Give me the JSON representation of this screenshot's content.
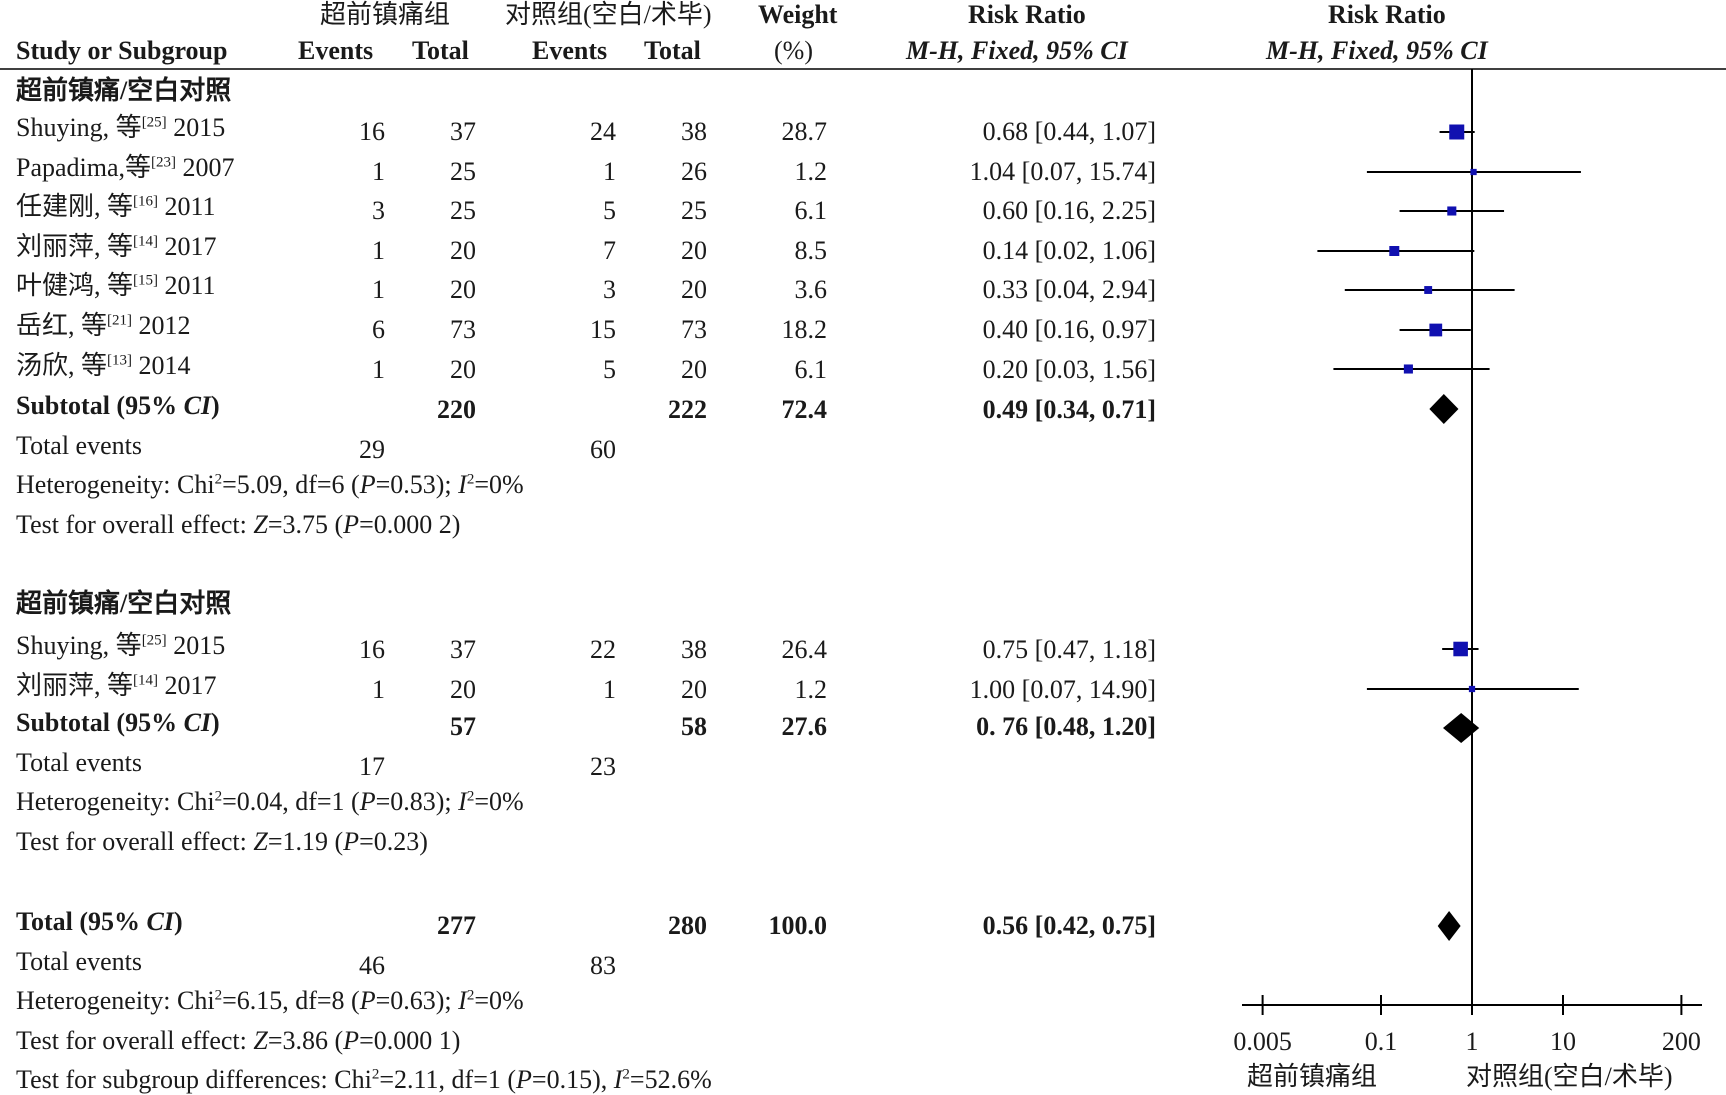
{
  "header": {
    "group1": "超前镇痛组",
    "group2": "对照组(空白/术毕)",
    "study_col": "Study or Subgroup",
    "events": "Events",
    "total": "Total",
    "weight_top": "Weight",
    "weight_unit": "(%)",
    "rr_title": "Risk Ratio",
    "rr_method_a": "M-H, Fixed, 95% CI",
    "plot_title": "Risk Ratio",
    "plot_method": "M-H, Fixed, 95% CI"
  },
  "subgroups": [
    {
      "title": "超前镇痛/空白对照",
      "studies": [
        {
          "name": "Shuying, 等",
          "ref": "[25]",
          "year": "2015",
          "e1": "16",
          "t1": "37",
          "e2": "24",
          "t2": "38",
          "w": "28.7",
          "ci": "0.68 [0.44, 1.07]"
        },
        {
          "name": "Papadima,等",
          "ref": "[23]",
          "year": "2007",
          "e1": "1",
          "t1": "25",
          "e2": "1",
          "t2": "26",
          "w": "1.2",
          "ci": "1.04 [0.07, 15.74]"
        },
        {
          "name": "任建刚, 等",
          "ref": "[16]",
          "year": "2011",
          "e1": "3",
          "t1": "25",
          "e2": "5",
          "t2": "25",
          "w": "6.1",
          "ci": "0.60 [0.16, 2.25]"
        },
        {
          "name": "刘丽萍, 等",
          "ref": "[14]",
          "year": "2017",
          "e1": "1",
          "t1": "20",
          "e2": "7",
          "t2": "20",
          "w": "8.5",
          "ci": "0.14 [0.02, 1.06]"
        },
        {
          "name": "叶健鸿, 等",
          "ref": "[15]",
          "year": "2011",
          "e1": "1",
          "t1": "20",
          "e2": "3",
          "t2": "20",
          "w": "3.6",
          "ci": "0.33 [0.04, 2.94]"
        },
        {
          "name": "岳红, 等",
          "ref": "[21]",
          "year": "2012",
          "e1": "6",
          "t1": "73",
          "e2": "15",
          "t2": "73",
          "w": "18.2",
          "ci": "0.40 [0.16, 0.97]"
        },
        {
          "name": "汤欣, 等",
          "ref": "[13]",
          "year": "2014",
          "e1": "1",
          "t1": "20",
          "e2": "5",
          "t2": "20",
          "w": "6.1",
          "ci": "0.20 [0.03, 1.56]"
        }
      ],
      "subtotal": {
        "label": "Subtotal (95% ",
        "label_ci": "CI",
        "label_end": ")",
        "t1": "220",
        "t2": "222",
        "w": "72.4",
        "ci": "0.49 [0.34, 0.71]"
      },
      "events_label": "Total events",
      "events1": "29",
      "events2": "60",
      "hetero": "Heterogeneity: Chi²=5.09, df=6 (P=0.53); I²=0%",
      "overall": "Test for overall effect: Z=3.75 (P=0.000 2)"
    },
    {
      "title": "超前镇痛/空白对照",
      "studies": [
        {
          "name": "Shuying, 等",
          "ref": "[25]",
          "year": "2015",
          "e1": "16",
          "t1": "37",
          "e2": "22",
          "t2": "38",
          "w": "26.4",
          "ci": "0.75 [0.47, 1.18]"
        },
        {
          "name": "刘丽萍, 等",
          "ref": "[14]",
          "year": "2017",
          "e1": "1",
          "t1": "20",
          "e2": "1",
          "t2": "20",
          "w": "1.2",
          "ci": "1.00 [0.07, 14.90]"
        }
      ],
      "subtotal": {
        "label": "Subtotal (95% ",
        "label_ci": "CI",
        "label_end": ")",
        "t1": "57",
        "t2": "58",
        "w": "27.6",
        "ci": "0. 76 [0.48, 1.20]"
      },
      "events_label": "Total events",
      "events1": "17",
      "events2": "23",
      "hetero": "Heterogeneity: Chi²=0.04, df=1 (P=0.83); I²=0%",
      "overall": "Test for overall effect: Z=1.19 (P=0.23)"
    }
  ],
  "total": {
    "label": "Total (95% ",
    "label_ci": "CI",
    "label_end": ")",
    "t1": "277",
    "t2": "280",
    "w": "100.0",
    "ci": "0.56 [0.42, 0.75]",
    "events_label": "Total events",
    "events1": "46",
    "events2": "83",
    "hetero": "Heterogeneity: Chi²=6.15, df=8 (P=0.63); I²=0%",
    "overall": "Test for overall effect: Z=3.86 (P=0.000 1)",
    "subgroup_diff": "Test for subgroup differences: Chi²=2.11, df=1 (P=0.15), I²=52.6%"
  },
  "axis": {
    "favours_left": "超前镇痛组",
    "favours_right": "对照组(空白/术毕)"
  },
  "chart_data": {
    "type": "forest",
    "scale": "log",
    "xlim": [
      0.005,
      200
    ],
    "ticks": [
      0.005,
      0.1,
      1,
      10,
      200
    ],
    "tick_labels": [
      "0.005",
      "0.1",
      "1",
      "10",
      "200"
    ],
    "reference_line": 1,
    "marker_color": "#1010b0",
    "summary_color": "#000000",
    "studies": [
      {
        "rr": 0.68,
        "lo": 0.44,
        "hi": 1.07,
        "w": 28.7
      },
      {
        "rr": 1.04,
        "lo": 0.07,
        "hi": 15.74,
        "w": 1.2
      },
      {
        "rr": 0.6,
        "lo": 0.16,
        "hi": 2.25,
        "w": 6.1
      },
      {
        "rr": 0.14,
        "lo": 0.02,
        "hi": 1.06,
        "w": 8.5
      },
      {
        "rr": 0.33,
        "lo": 0.04,
        "hi": 2.94,
        "w": 3.6
      },
      {
        "rr": 0.4,
        "lo": 0.16,
        "hi": 0.97,
        "w": 18.2
      },
      {
        "rr": 0.2,
        "lo": 0.03,
        "hi": 1.56,
        "w": 6.1
      },
      {
        "rr": 0.75,
        "lo": 0.47,
        "hi": 1.18,
        "w": 26.4
      },
      {
        "rr": 1.0,
        "lo": 0.07,
        "hi": 14.9,
        "w": 1.2
      }
    ],
    "summaries": [
      {
        "rr": 0.49,
        "lo": 0.34,
        "hi": 0.71
      },
      {
        "rr": 0.76,
        "lo": 0.48,
        "hi": 1.2
      },
      {
        "rr": 0.56,
        "lo": 0.42,
        "hi": 0.75
      }
    ]
  }
}
